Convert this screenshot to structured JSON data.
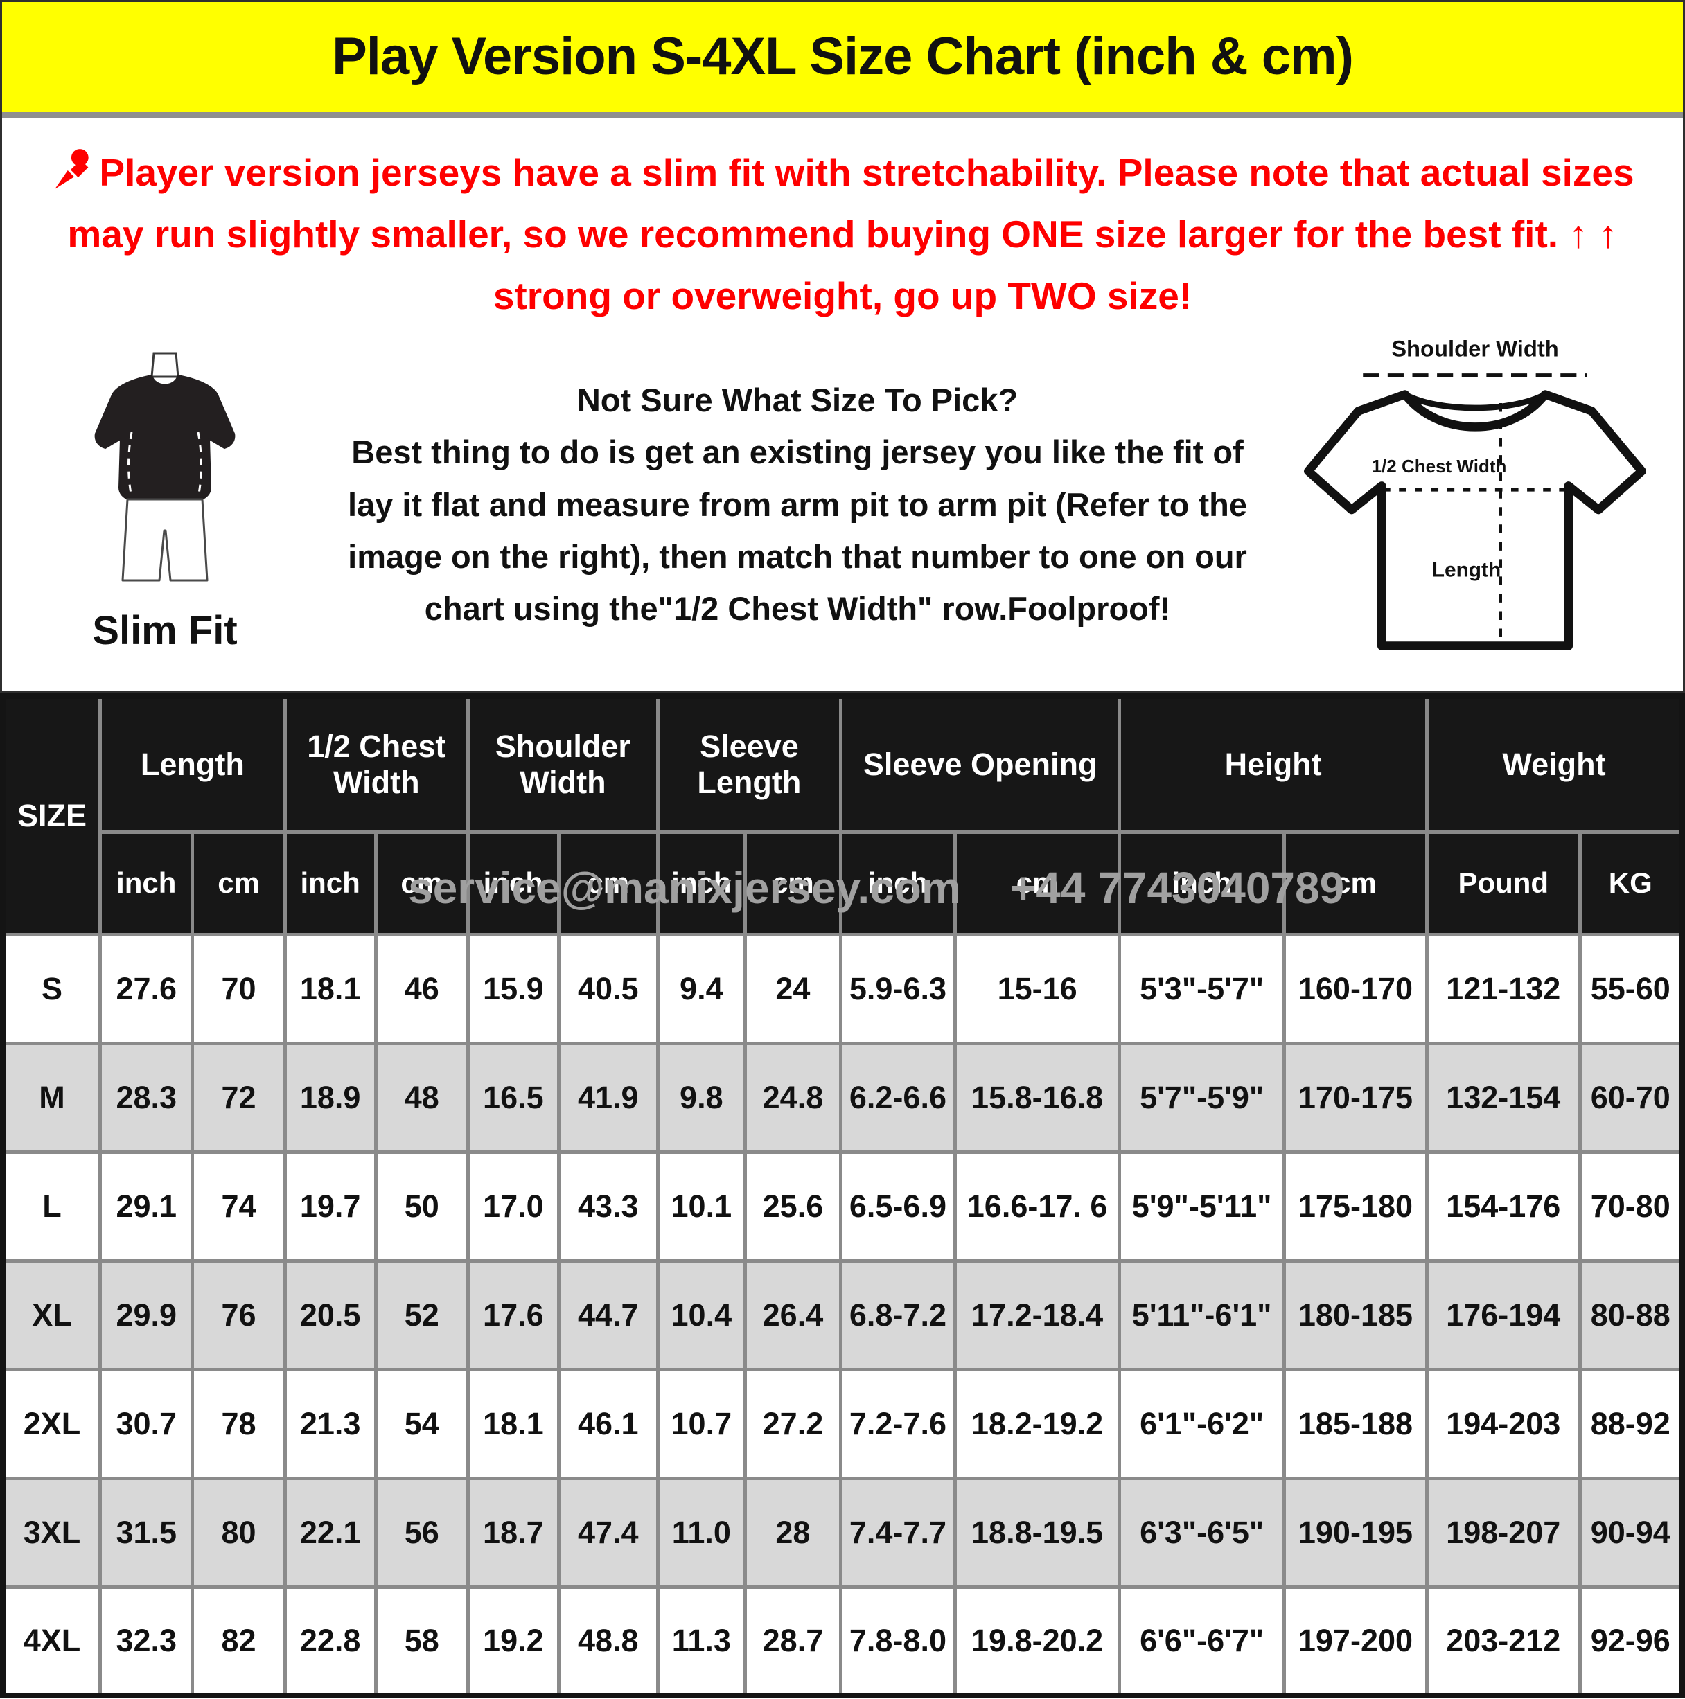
{
  "banner": {
    "title": "Play Version S-4XL Size Chart (inch & cm)"
  },
  "notice": {
    "text": "Player version jerseys have a slim fit with stretchability. Please note that actual sizes may run slightly smaller, so we recommend buying ONE size larger for the best fit. ↑ ↑ strong or overweight, go up TWO size!"
  },
  "guide": {
    "slim_fit_label": "Slim Fit",
    "heading": "Not Sure What Size To Pick?",
    "body": "Best thing to do is get an existing jersey you like the fit of lay it flat and measure from arm pit to arm pit (Refer to the image on the right), then match that number to one on our chart using the\"1/2 Chest Width\" row.Foolproof!",
    "diagram": {
      "shoulder_width": "Shoulder Width",
      "half_chest_width": "1/2 Chest Width",
      "length": "Length"
    }
  },
  "watermark": "service@manixjersey.com    +44 7743040789",
  "colors": {
    "banner_bg": "#ffff00",
    "accent_red": "#fe0000",
    "header_bg": "#171717",
    "header_text": "#ffffff",
    "row_alt_bg": "#d8d8d8",
    "grid_line": "#8a8a8a",
    "watermark_gray": "#a0a0a0"
  },
  "table": {
    "size_header": "SIZE",
    "groups": [
      {
        "label": "Length",
        "span": 2
      },
      {
        "label": "1/2 Chest Width",
        "span": 2
      },
      {
        "label": "Shoulder Width",
        "span": 2
      },
      {
        "label": "Sleeve Length",
        "span": 2
      },
      {
        "label": "Sleeve Opening",
        "span": 2
      },
      {
        "label": "Height",
        "span": 2
      },
      {
        "label": "Weight",
        "span": 2
      }
    ],
    "sub_headers": [
      "inch",
      "cm",
      "inch",
      "cm",
      "inch",
      "cm",
      "inch",
      "cm",
      "inch",
      "cm",
      "inch",
      "cm",
      "Pound",
      "KG"
    ],
    "rows": [
      {
        "size": "S",
        "values": [
          "27.6",
          "70",
          "18.1",
          "46",
          "15.9",
          "40.5",
          "9.4",
          "24",
          "5.9-6.3",
          "15-16",
          "5'3\"-5'7\"",
          "160-170",
          "121-132",
          "55-60"
        ]
      },
      {
        "size": "M",
        "values": [
          "28.3",
          "72",
          "18.9",
          "48",
          "16.5",
          "41.9",
          "9.8",
          "24.8",
          "6.2-6.6",
          "15.8-16.8",
          "5'7\"-5'9\"",
          "170-175",
          "132-154",
          "60-70"
        ]
      },
      {
        "size": "L",
        "values": [
          "29.1",
          "74",
          "19.7",
          "50",
          "17.0",
          "43.3",
          "10.1",
          "25.6",
          "6.5-6.9",
          "16.6-17. 6",
          "5'9\"-5'11\"",
          "175-180",
          "154-176",
          "70-80"
        ]
      },
      {
        "size": "XL",
        "values": [
          "29.9",
          "76",
          "20.5",
          "52",
          "17.6",
          "44.7",
          "10.4",
          "26.4",
          "6.8-7.2",
          "17.2-18.4",
          "5'11\"-6'1\"",
          "180-185",
          "176-194",
          "80-88"
        ]
      },
      {
        "size": "2XL",
        "values": [
          "30.7",
          "78",
          "21.3",
          "54",
          "18.1",
          "46.1",
          "10.7",
          "27.2",
          "7.2-7.6",
          "18.2-19.2",
          "6'1\"-6'2\"",
          "185-188",
          "194-203",
          "88-92"
        ]
      },
      {
        "size": "3XL",
        "values": [
          "31.5",
          "80",
          "22.1",
          "56",
          "18.7",
          "47.4",
          "11.0",
          "28",
          "7.4-7.7",
          "18.8-19.5",
          "6'3\"-6'5\"",
          "190-195",
          "198-207",
          "90-94"
        ]
      },
      {
        "size": "4XL",
        "values": [
          "32.3",
          "82",
          "22.8",
          "58",
          "19.2",
          "48.8",
          "11.3",
          "28.7",
          "7.8-8.0",
          "19.8-20.2",
          "6'6\"-6'7\"",
          "197-200",
          "203-212",
          "92-96"
        ]
      }
    ]
  }
}
